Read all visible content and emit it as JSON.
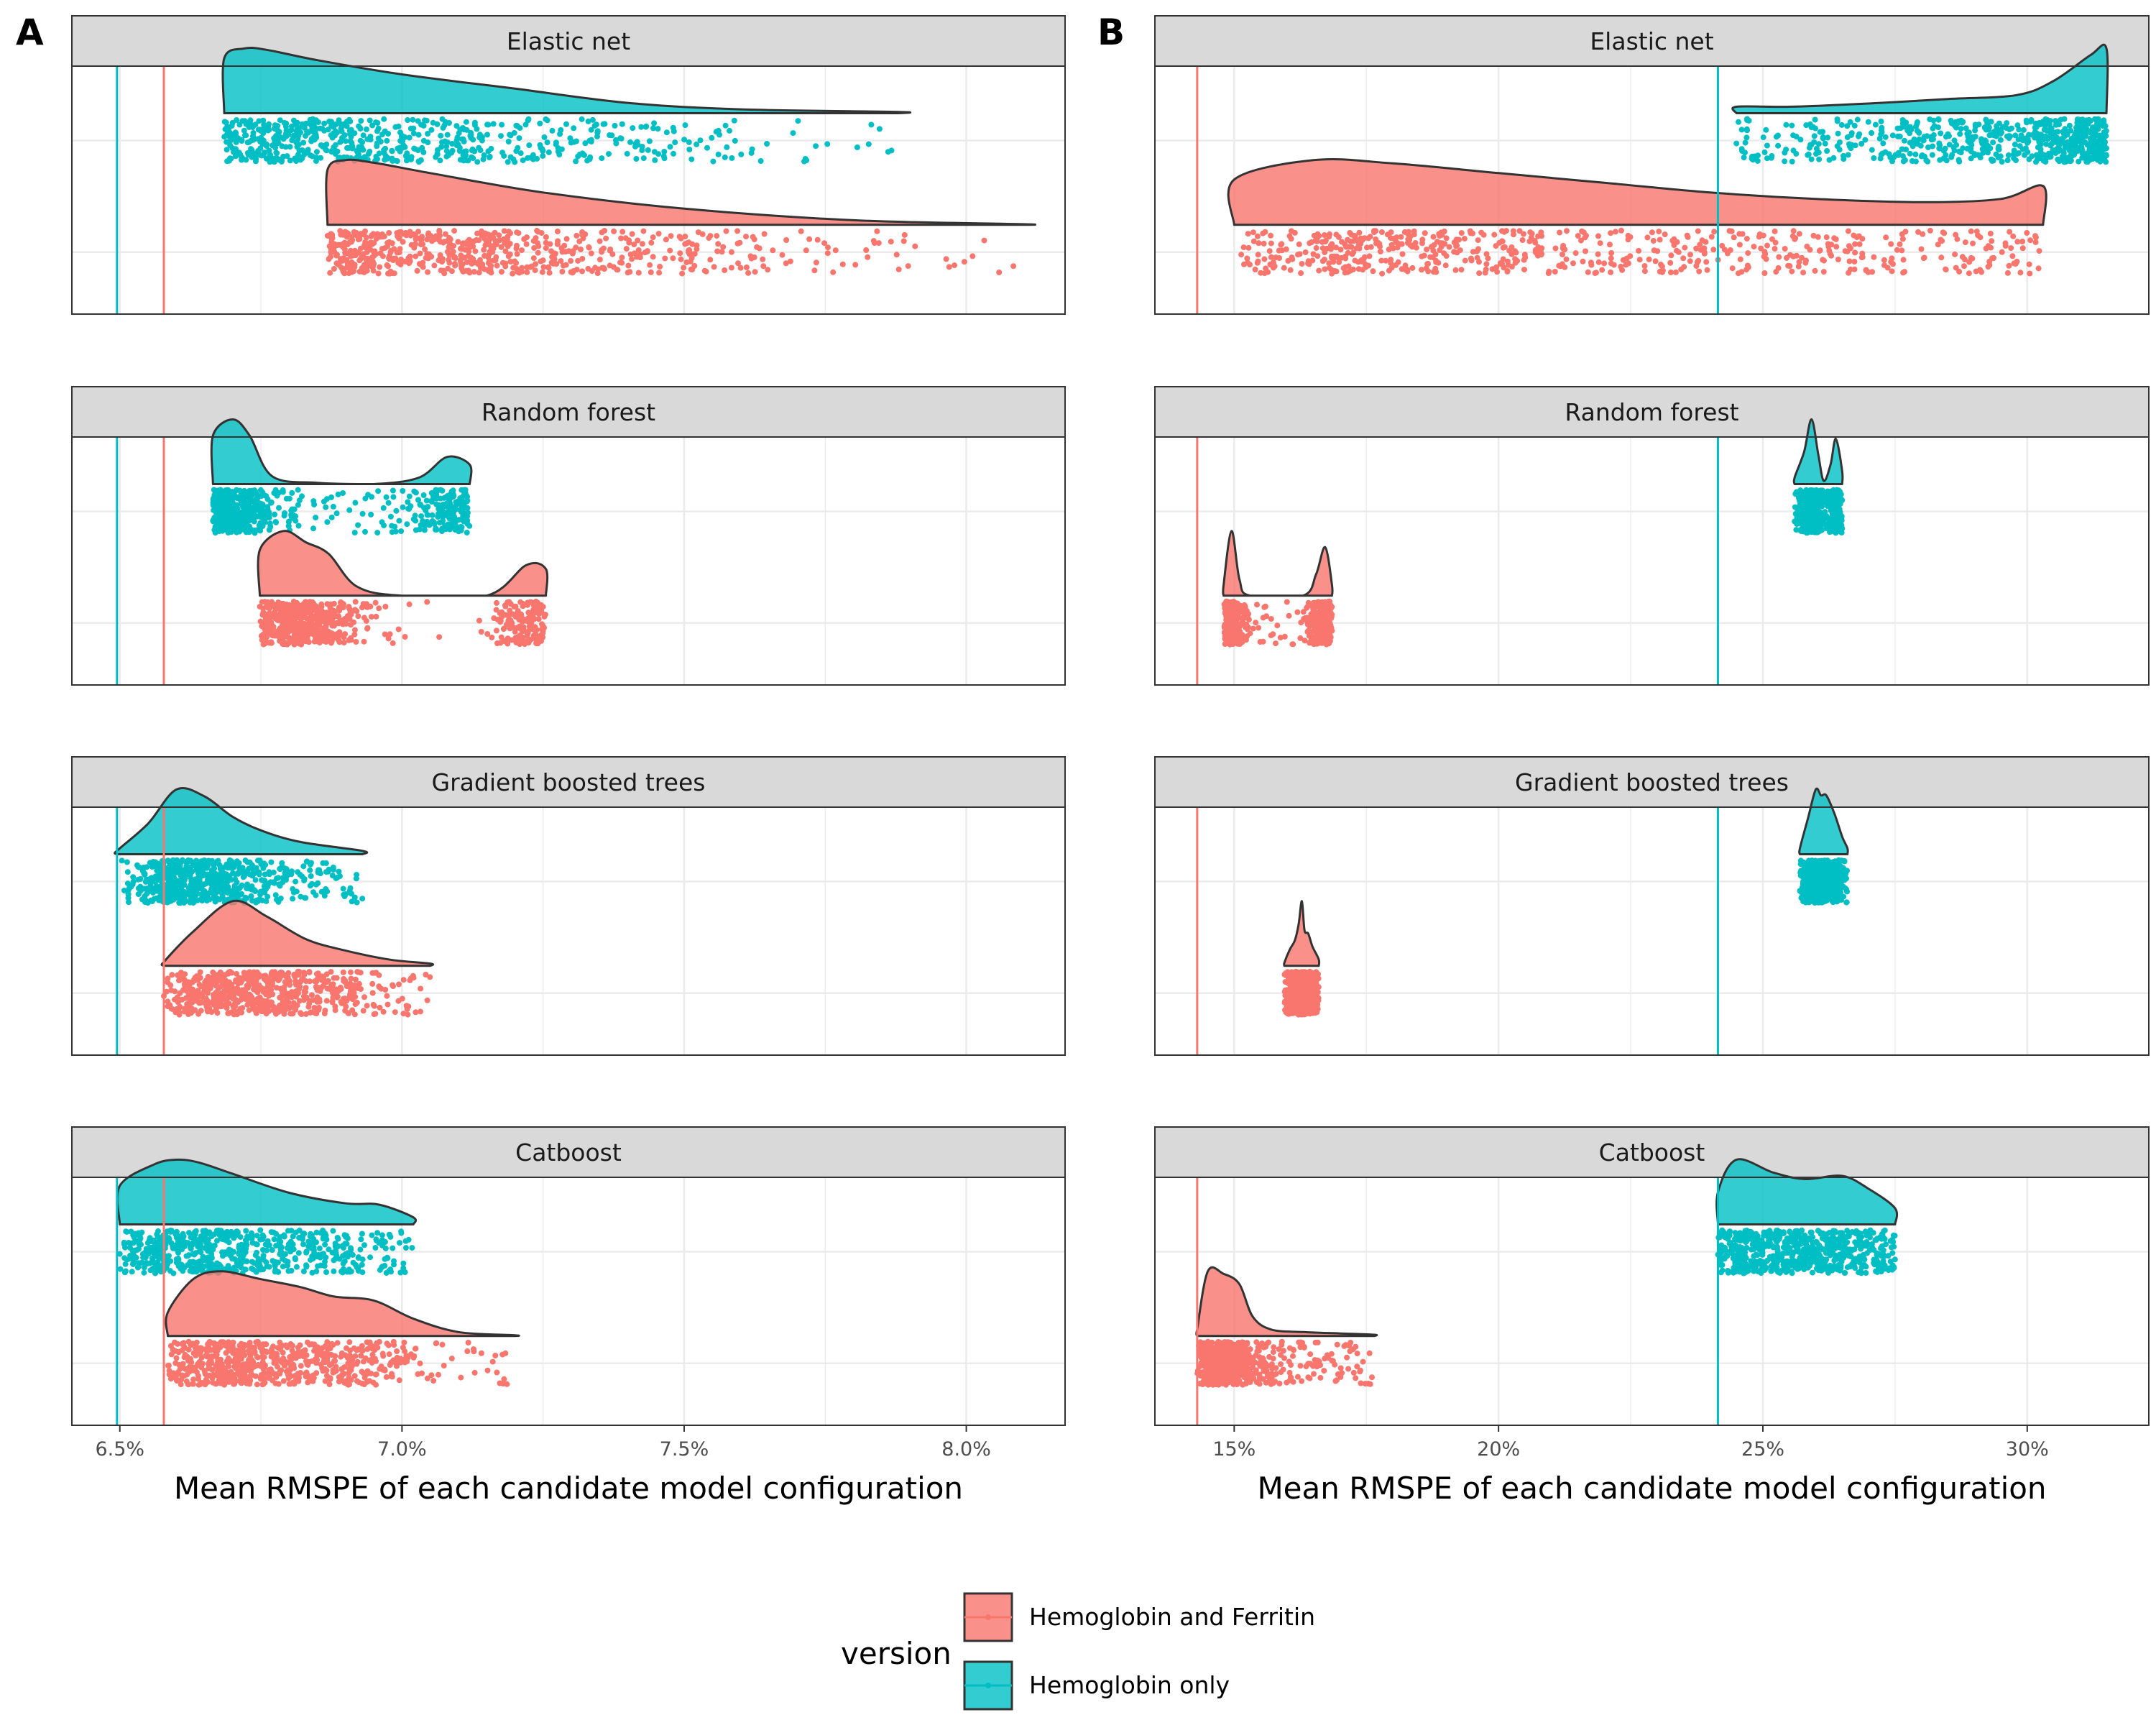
{
  "chart_data": [
    {
      "tag": "A",
      "type": "raincloud",
      "xlabel": "Mean RMSPE of each candidate model configuration",
      "xlim": [
        6.415,
        8.175
      ],
      "xticks": [
        6.5,
        7.0,
        7.5,
        8.0
      ],
      "xtick_labels": [
        "6.5%",
        "7.0%",
        "7.5%",
        "8.0%"
      ],
      "reference_lines": [
        {
          "version": "Hemoglobin only",
          "x": 6.495
        },
        {
          "version": "Hemoglobin and Ferritin",
          "x": 6.578
        }
      ],
      "facets": [
        {
          "name": "Elastic net",
          "series": [
            {
              "name": "Hemoglobin only",
              "min": 6.685,
              "max": 7.88,
              "density": [
                [
                  6.685,
                  0.85
                ],
                [
                  6.72,
                  1.0
                ],
                [
                  6.76,
                  0.98
                ],
                [
                  6.85,
                  0.82
                ],
                [
                  7.0,
                  0.6
                ],
                [
                  7.2,
                  0.38
                ],
                [
                  7.4,
                  0.16
                ],
                [
                  7.6,
                  0.06
                ],
                [
                  7.88,
                  0.02
                ]
              ]
            },
            {
              "name": "Hemoglobin and Ferritin",
              "min": 6.868,
              "max": 8.1,
              "density": [
                [
                  6.868,
                  0.85
                ],
                [
                  6.9,
                  1.0
                ],
                [
                  6.95,
                  0.96
                ],
                [
                  7.05,
                  0.8
                ],
                [
                  7.25,
                  0.5
                ],
                [
                  7.5,
                  0.25
                ],
                [
                  7.8,
                  0.07
                ],
                [
                  8.1,
                  0.01
                ]
              ]
            }
          ]
        },
        {
          "name": "Random forest",
          "series": [
            {
              "name": "Hemoglobin only",
              "min": 6.665,
              "max": 7.12,
              "density": [
                [
                  6.665,
                  0.75
                ],
                [
                  6.7,
                  1.0
                ],
                [
                  6.73,
                  0.75
                ],
                [
                  6.77,
                  0.12
                ],
                [
                  6.85,
                  0.02
                ],
                [
                  6.95,
                  0.0
                ],
                [
                  7.03,
                  0.1
                ],
                [
                  7.08,
                  0.42
                ],
                [
                  7.12,
                  0.3
                ]
              ]
            },
            {
              "name": "Hemoglobin and Ferritin",
              "min": 6.748,
              "max": 7.255,
              "density": [
                [
                  6.748,
                  0.6
                ],
                [
                  6.79,
                  0.85
                ],
                [
                  6.83,
                  0.7
                ],
                [
                  6.87,
                  0.55
                ],
                [
                  6.92,
                  0.12
                ],
                [
                  7.0,
                  0.0
                ],
                [
                  7.15,
                  0.0
                ],
                [
                  7.22,
                  0.4
                ],
                [
                  7.255,
                  0.35
                ]
              ]
            }
          ]
        },
        {
          "name": "Gradient boosted trees",
          "series": [
            {
              "name": "Hemoglobin only",
              "min": 6.495,
              "max": 6.93,
              "density": [
                [
                  6.495,
                  0.05
                ],
                [
                  6.55,
                  0.45
                ],
                [
                  6.6,
                  0.95
                ],
                [
                  6.65,
                  0.85
                ],
                [
                  6.7,
                  0.55
                ],
                [
                  6.75,
                  0.35
                ],
                [
                  6.82,
                  0.18
                ],
                [
                  6.93,
                  0.05
                ]
              ]
            },
            {
              "name": "Hemoglobin and Ferritin",
              "min": 6.578,
              "max": 7.05,
              "density": [
                [
                  6.578,
                  0.05
                ],
                [
                  6.63,
                  0.45
                ],
                [
                  6.7,
                  0.85
                ],
                [
                  6.76,
                  0.65
                ],
                [
                  6.83,
                  0.35
                ],
                [
                  6.9,
                  0.2
                ],
                [
                  6.98,
                  0.08
                ],
                [
                  7.05,
                  0.03
                ]
              ]
            }
          ]
        },
        {
          "name": "Catboost",
          "series": [
            {
              "name": "Hemoglobin only",
              "min": 6.5,
              "max": 7.02,
              "density": [
                [
                  6.5,
                  0.55
                ],
                [
                  6.56,
                  0.85
                ],
                [
                  6.6,
                  0.92
                ],
                [
                  6.64,
                  0.88
                ],
                [
                  6.7,
                  0.72
                ],
                [
                  6.8,
                  0.45
                ],
                [
                  6.9,
                  0.3
                ],
                [
                  6.96,
                  0.28
                ],
                [
                  7.02,
                  0.1
                ]
              ]
            },
            {
              "name": "Hemoglobin and Ferritin",
              "min": 6.585,
              "max": 7.2,
              "density": [
                [
                  6.585,
                  0.3
                ],
                [
                  6.63,
                  0.72
                ],
                [
                  6.68,
                  0.82
                ],
                [
                  6.75,
                  0.72
                ],
                [
                  6.82,
                  0.62
                ],
                [
                  6.88,
                  0.5
                ],
                [
                  6.95,
                  0.45
                ],
                [
                  7.02,
                  0.22
                ],
                [
                  7.1,
                  0.05
                ],
                [
                  7.2,
                  0.01
                ]
              ]
            }
          ]
        }
      ]
    },
    {
      "tag": "B",
      "type": "raincloud",
      "xlabel": "Mean RMSPE of each candidate model configuration",
      "xlim": [
        13.5,
        32.3
      ],
      "xticks": [
        15,
        20,
        25,
        30
      ],
      "xtick_labels": [
        "15%",
        "20%",
        "25%",
        "30%"
      ],
      "reference_lines": [
        {
          "version": "Hemoglobin only",
          "x": 24.15
        },
        {
          "version": "Hemoglobin and Ferritin",
          "x": 14.3
        }
      ],
      "facets": [
        {
          "name": "Elastic net",
          "series": [
            {
              "name": "Hemoglobin only",
              "min": 24.5,
              "max": 31.5,
              "density": [
                [
                  24.5,
                  0.1
                ],
                [
                  25.5,
                  0.1
                ],
                [
                  27.0,
                  0.15
                ],
                [
                  28.5,
                  0.22
                ],
                [
                  29.8,
                  0.28
                ],
                [
                  30.5,
                  0.5
                ],
                [
                  31.2,
                  0.9
                ],
                [
                  31.5,
                  1.0
                ]
              ]
            },
            {
              "name": "Hemoglobin and Ferritin",
              "min": 15.0,
              "max": 30.3,
              "density": [
                [
                  15.0,
                  0.07
                ],
                [
                  16.5,
                  0.1
                ],
                [
                  18.0,
                  0.095
                ],
                [
                  20.0,
                  0.08
                ],
                [
                  22.0,
                  0.065
                ],
                [
                  24.0,
                  0.05
                ],
                [
                  26.0,
                  0.04
                ],
                [
                  28.0,
                  0.035
                ],
                [
                  29.5,
                  0.04
                ],
                [
                  30.3,
                  0.06
                ]
              ]
            }
          ]
        },
        {
          "name": "Random forest",
          "series": [
            {
              "name": "Hemoglobin only",
              "min": 25.6,
              "max": 26.5,
              "density": [
                [
                  25.6,
                  0.1
                ],
                [
                  25.78,
                  0.5
                ],
                [
                  25.92,
                  1.0
                ],
                [
                  26.05,
                  0.45
                ],
                [
                  26.15,
                  0.05
                ],
                [
                  26.28,
                  0.3
                ],
                [
                  26.38,
                  0.7
                ],
                [
                  26.5,
                  0.2
                ]
              ]
            },
            {
              "name": "Hemoglobin and Ferritin",
              "min": 14.8,
              "max": 16.85,
              "density": [
                [
                  14.8,
                  0.1
                ],
                [
                  14.95,
                  0.6
                ],
                [
                  15.1,
                  0.15
                ],
                [
                  15.3,
                  0.0
                ],
                [
                  16.3,
                  0.0
                ],
                [
                  16.55,
                  0.2
                ],
                [
                  16.72,
                  0.45
                ],
                [
                  16.85,
                  0.1
                ]
              ]
            }
          ]
        },
        {
          "name": "Gradient boosted trees",
          "series": [
            {
              "name": "Hemoglobin only",
              "min": 25.7,
              "max": 26.6,
              "density": [
                [
                  25.7,
                  0.05
                ],
                [
                  25.85,
                  0.3
                ],
                [
                  26.0,
                  0.55
                ],
                [
                  26.1,
                  0.5
                ],
                [
                  26.2,
                  0.5
                ],
                [
                  26.35,
                  0.35
                ],
                [
                  26.5,
                  0.15
                ],
                [
                  26.6,
                  0.05
                ]
              ]
            },
            {
              "name": "Hemoglobin and Ferritin",
              "min": 15.95,
              "max": 16.6,
              "density": [
                [
                  15.95,
                  0.05
                ],
                [
                  16.05,
                  0.25
                ],
                [
                  16.15,
                  0.4
                ],
                [
                  16.22,
                  0.65
                ],
                [
                  16.28,
                  1.0
                ],
                [
                  16.33,
                  0.55
                ],
                [
                  16.4,
                  0.5
                ],
                [
                  16.48,
                  0.3
                ],
                [
                  16.6,
                  0.1
                ]
              ]
            }
          ]
        },
        {
          "name": "Catboost",
          "series": [
            {
              "name": "Hemoglobin only",
              "min": 24.15,
              "max": 27.5,
              "density": [
                [
                  24.15,
                  0.2
                ],
                [
                  24.5,
                  0.4
                ],
                [
                  25.2,
                  0.32
                ],
                [
                  25.8,
                  0.28
                ],
                [
                  26.5,
                  0.3
                ],
                [
                  27.0,
                  0.22
                ],
                [
                  27.5,
                  0.1
                ]
              ]
            },
            {
              "name": "Hemoglobin and Ferritin",
              "min": 14.3,
              "max": 17.65,
              "density": [
                [
                  14.3,
                  0.05
                ],
                [
                  14.5,
                  0.5
                ],
                [
                  14.8,
                  0.48
                ],
                [
                  15.1,
                  0.4
                ],
                [
                  15.35,
                  0.15
                ],
                [
                  15.7,
                  0.05
                ],
                [
                  16.3,
                  0.03
                ],
                [
                  17.0,
                  0.02
                ],
                [
                  17.65,
                  0.01
                ]
              ]
            }
          ]
        }
      ]
    }
  ],
  "legend": {
    "title": "version",
    "entries": [
      {
        "label": "Hemoglobin and Ferritin",
        "fill": "#f8766d",
        "line": "#f8766d"
      },
      {
        "label": "Hemoglobin only",
        "fill": "#00bfc4",
        "line": "#00bfc4"
      }
    ]
  },
  "colors": {
    "Hemoglobin and Ferritin": "#f8766d",
    "Hemoglobin only": "#00bfc4"
  }
}
